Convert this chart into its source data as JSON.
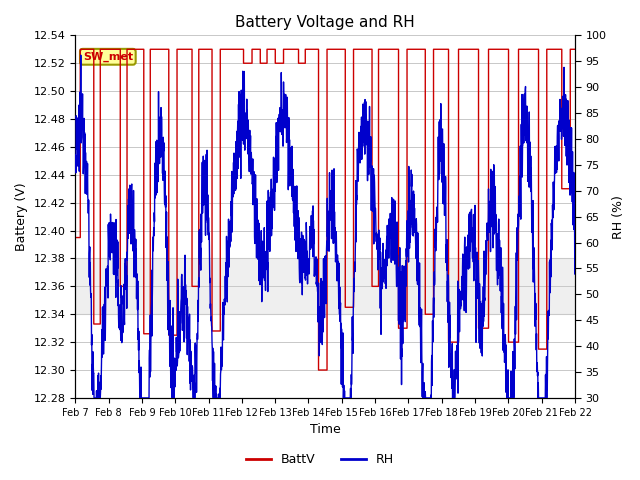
{
  "title": "Battery Voltage and RH",
  "xlabel": "Time",
  "ylabel_left": "Battery (V)",
  "ylabel_right": "RH (%)",
  "ylim_left": [
    12.28,
    12.54
  ],
  "ylim_right": [
    30,
    100
  ],
  "yticks_left": [
    12.28,
    12.3,
    12.32,
    12.34,
    12.36,
    12.38,
    12.4,
    12.42,
    12.44,
    12.46,
    12.48,
    12.5,
    12.52,
    12.54
  ],
  "yticks_right": [
    30,
    35,
    40,
    45,
    50,
    55,
    60,
    65,
    70,
    75,
    80,
    85,
    90,
    95,
    100
  ],
  "xtick_labels": [
    "Feb 7",
    "Feb 8",
    "Feb 9",
    "Feb 10",
    "Feb 11",
    "Feb 12",
    "Feb 13",
    "Feb 14",
    "Feb 15",
    "Feb 16",
    "Feb 17",
    "Feb 18",
    "Feb 19",
    "Feb 20",
    "Feb 21",
    "Feb 22"
  ],
  "legend_labels": [
    "BattV",
    "RH"
  ],
  "legend_colors": [
    "#cc0000",
    "#0000cc"
  ],
  "annotation_text": "SW_met",
  "annotation_color": "#cc0000",
  "annotation_bg": "#ffff99",
  "grid_color": "#c8c8c8",
  "shaded_region": [
    12.34,
    12.38
  ],
  "batt_color": "#cc0000",
  "rh_color": "#0000cc",
  "linewidth": 1.0
}
